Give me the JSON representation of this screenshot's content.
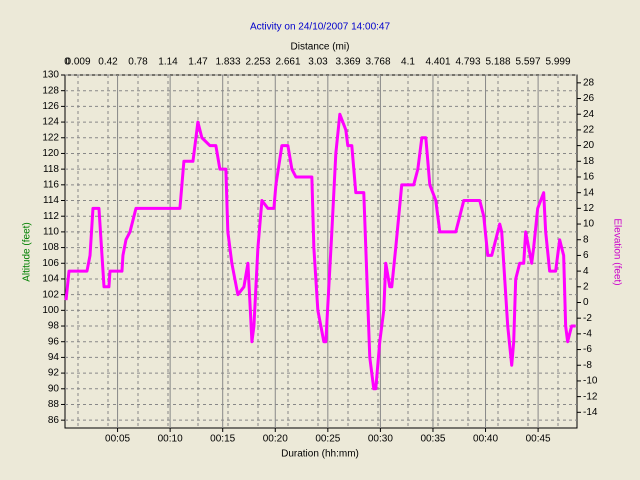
{
  "chart_data": {
    "type": "line",
    "title": "Activity on 24/10/2007 14:00:47",
    "xlabel": "Duration (hh:mm)",
    "x2label": "Distance (mi)",
    "ylabel": "Altitude (feet)",
    "y2label": "Elevation (feet)",
    "x2tick_labels": [
      "0",
      "0.009",
      "0.42",
      "0.78",
      "1.14",
      "1.47",
      "1.833",
      "2.253",
      "2.661",
      "3.03",
      "3.369",
      "3.768",
      "4.1",
      "4.401",
      "4.793",
      "5.188",
      "5.597",
      "5.999"
    ],
    "xlim": [
      0,
      48.7
    ],
    "xticks": [
      {
        "value": 5,
        "label": "00:05"
      },
      {
        "value": 10,
        "label": "00:10"
      },
      {
        "value": 15,
        "label": "00:15"
      },
      {
        "value": 20,
        "label": "00:20"
      },
      {
        "value": 25,
        "label": "00:25"
      },
      {
        "value": 30,
        "label": "00:30"
      },
      {
        "value": 35,
        "label": "00:35"
      },
      {
        "value": 40,
        "label": "00:40"
      },
      {
        "value": 45,
        "label": "00:45"
      }
    ],
    "ylim": [
      85,
      130
    ],
    "yticks": [
      86,
      88,
      90,
      92,
      94,
      96,
      98,
      100,
      102,
      104,
      106,
      108,
      110,
      112,
      114,
      116,
      118,
      120,
      122,
      124,
      126,
      128,
      130
    ],
    "y2lim": [
      -16,
      29
    ],
    "y2ticks": [
      -14,
      -12,
      -10,
      -8,
      -6,
      -4,
      -2,
      0,
      2,
      4,
      6,
      8,
      10,
      12,
      14,
      16,
      18,
      20,
      22,
      24,
      26,
      28
    ],
    "grid": true,
    "x": [
      0.1,
      0.38,
      2.09,
      2.38,
      2.66,
      3.23,
      3.71,
      4.18,
      4.28,
      5.42,
      5.51,
      5.8,
      6.18,
      6.75,
      10.93,
      11.31,
      12.17,
      12.36,
      12.64,
      13.02,
      13.78,
      14.35,
      14.73,
      15.3,
      15.49,
      15.87,
      16.44,
      17.02,
      17.4,
      17.78,
      17.97,
      18.35,
      18.73,
      19.3,
      19.87,
      20.06,
      20.63,
      21.2,
      21.58,
      21.96,
      23.48,
      23.67,
      24.05,
      24.62,
      24.81,
      25.38,
      25.76,
      26.14,
      26.71,
      26.9,
      27.28,
      27.66,
      28.42,
      28.61,
      28.99,
      29.37,
      29.56,
      29.94,
      30.32,
      30.51,
      30.89,
      31.08,
      31.46,
      32.03,
      33.17,
      33.56,
      33.94,
      34.32,
      34.7,
      35.27,
      35.65,
      37.17,
      37.55,
      37.93,
      39.45,
      39.83,
      40.21,
      40.59,
      40.97,
      41.35,
      41.54,
      41.73,
      42.11,
      42.49,
      42.68,
      42.87,
      43.25,
      43.63,
      43.82,
      44.39,
      44.58,
      44.96,
      45.53,
      45.72,
      46.1,
      46.67,
      47.05,
      47.43,
      47.62,
      47.81,
      48.19,
      48.57
    ],
    "series": [
      {
        "name": "Altitude",
        "color": "#ff00ff",
        "values": [
          101.3,
          105,
          105,
          107,
          113,
          113,
          103,
          103,
          105,
          105,
          107,
          109,
          110,
          113,
          113,
          119,
          119,
          121,
          124,
          122,
          121,
          121,
          118,
          118,
          110,
          106,
          102,
          103,
          106,
          96,
          98,
          108,
          114,
          113,
          113,
          116,
          121,
          121,
          118,
          117,
          117,
          108,
          100,
          96,
          96,
          110,
          120,
          125,
          123,
          121,
          121,
          115,
          115,
          108,
          94,
          90,
          90,
          96,
          100,
          106,
          103,
          103,
          108,
          116,
          116,
          118,
          122,
          122,
          116,
          114,
          110,
          110,
          112,
          114,
          114,
          112,
          107,
          107,
          109,
          111,
          110,
          106,
          98,
          93,
          96,
          104,
          106,
          106,
          110,
          106,
          108,
          113,
          115,
          110,
          105,
          105,
          109,
          107,
          98,
          96,
          98,
          98
        ]
      }
    ]
  }
}
